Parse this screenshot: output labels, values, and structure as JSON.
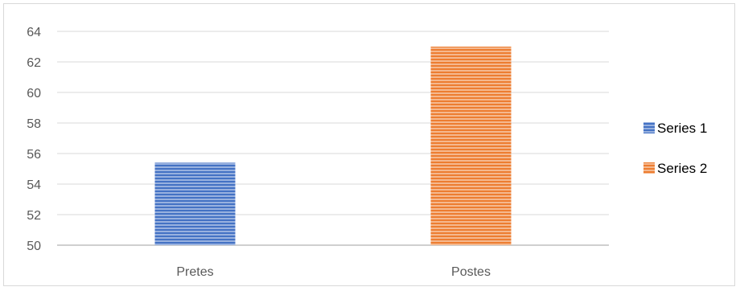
{
  "chart_data": {
    "type": "bar",
    "categories": [
      "Pretes",
      "Postes"
    ],
    "series": [
      {
        "name": "Series 1",
        "values": [
          55.4,
          null
        ],
        "color": "#4472c4"
      },
      {
        "name": "Series 2",
        "values": [
          null,
          63.0
        ],
        "color": "#ed7d31"
      }
    ],
    "ylim": [
      50,
      64
    ],
    "yticks": [
      50,
      52,
      54,
      56,
      58,
      60,
      62,
      64
    ],
    "grid": true,
    "legend": "right",
    "fill_pattern": "horizontal-stripes"
  }
}
